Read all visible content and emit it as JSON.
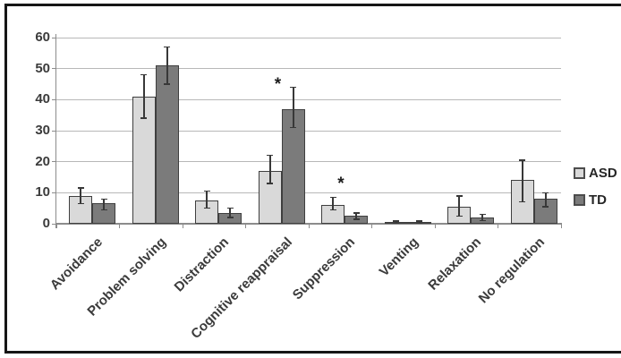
{
  "figure": {
    "title": "",
    "background": "#ffffff",
    "border_color": "#161616"
  },
  "legend": {
    "position": "right",
    "items": [
      "ASD",
      "TD"
    ]
  },
  "chart_data": {
    "type": "bar",
    "title": "",
    "xlabel": "",
    "ylabel": "",
    "categories": [
      "Avoidance",
      "Problem solving",
      "Distraction",
      "Cognitive reappraisal",
      "Suppression",
      "Venting",
      "Relaxation",
      "No regulation"
    ],
    "series": [
      {
        "name": "ASD",
        "color": "#d9d9d9",
        "values": [
          9,
          41,
          7.5,
          17,
          6,
          0.5,
          5.5,
          14
        ],
        "error_low": [
          6.5,
          34,
          5,
          13,
          4.5,
          0.2,
          2.5,
          7
        ],
        "error_high": [
          11.5,
          48,
          10.5,
          22,
          8.5,
          0.8,
          9,
          20.5
        ]
      },
      {
        "name": "TD",
        "color": "#7b7b7b",
        "values": [
          6.5,
          51,
          3.5,
          37,
          2.5,
          0.5,
          2,
          8
        ],
        "error_low": [
          4.5,
          45,
          2,
          31,
          1.5,
          0.2,
          1,
          5.5
        ],
        "error_high": [
          8,
          57,
          5,
          44,
          3.5,
          0.8,
          3,
          10
        ]
      }
    ],
    "yticks": [
      0,
      10,
      20,
      30,
      40,
      50,
      60
    ],
    "ylim": [
      0,
      60
    ],
    "grid": "horizontal",
    "legend_position": "right",
    "error_bars": true,
    "annotations": [
      {
        "text": "*",
        "category_index": 3,
        "anchor": "between-bars",
        "value": 45
      },
      {
        "text": "*",
        "category_index": 4,
        "anchor": "between-bars",
        "value": 13
      }
    ]
  }
}
